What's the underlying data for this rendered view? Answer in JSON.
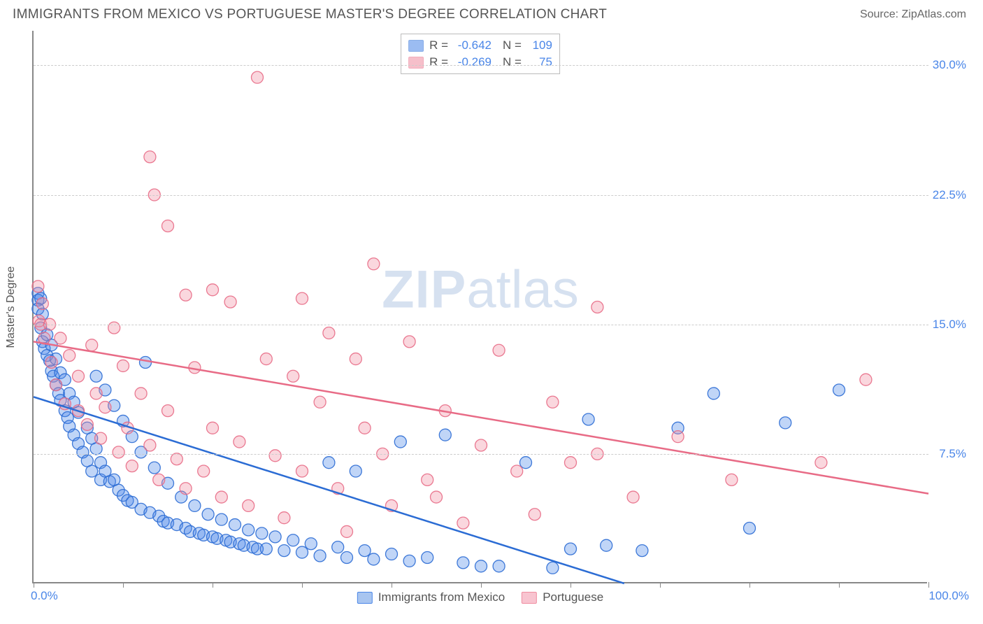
{
  "header": {
    "title": "IMMIGRANTS FROM MEXICO VS PORTUGUESE MASTER'S DEGREE CORRELATION CHART",
    "source": "Source: ZipAtlas.com"
  },
  "watermark_zip": "ZIP",
  "watermark_atlas": "atlas",
  "chart": {
    "type": "scatter",
    "xlim": [
      0,
      100
    ],
    "ylim": [
      0,
      32
    ],
    "xlabel_min": "0.0%",
    "xlabel_max": "100.0%",
    "ylabel": "Master's Degree",
    "yticks": [
      {
        "v": 7.5,
        "label": "7.5%"
      },
      {
        "v": 15.0,
        "label": "15.0%"
      },
      {
        "v": 22.5,
        "label": "22.5%"
      },
      {
        "v": 30.0,
        "label": "30.0%"
      }
    ],
    "xticks": [
      0,
      10,
      20,
      30,
      40,
      50,
      60,
      70,
      80,
      90,
      100
    ],
    "grid_color": "#cccccc",
    "axis_color": "#888888",
    "background_color": "#ffffff",
    "tick_label_color": "#4a86e8",
    "marker_radius": 8.5,
    "marker_fill_opacity": 0.35,
    "marker_stroke_opacity": 0.9,
    "line_width": 2.5,
    "series": [
      {
        "name": "Immigrants from Mexico",
        "color": "#4a86e8",
        "stroke": "#2b6cd4",
        "r": -0.642,
        "n": 109,
        "trend": {
          "x1": 0,
          "y1": 10.8,
          "x2": 66,
          "y2": 0
        },
        "points": [
          [
            0.5,
            16.8
          ],
          [
            0.5,
            16.4
          ],
          [
            0.5,
            15.9
          ],
          [
            0.8,
            16.5
          ],
          [
            0.8,
            14.8
          ],
          [
            1.0,
            15.6
          ],
          [
            1.0,
            14.0
          ],
          [
            1.2,
            13.6
          ],
          [
            1.5,
            14.4
          ],
          [
            1.5,
            13.2
          ],
          [
            1.8,
            12.9
          ],
          [
            2.0,
            13.8
          ],
          [
            2.0,
            12.3
          ],
          [
            2.2,
            12.0
          ],
          [
            2.5,
            13.0
          ],
          [
            2.5,
            11.5
          ],
          [
            2.8,
            11.0
          ],
          [
            3.0,
            12.2
          ],
          [
            3.0,
            10.6
          ],
          [
            3.5,
            11.8
          ],
          [
            3.5,
            10.0
          ],
          [
            3.8,
            9.6
          ],
          [
            4.0,
            11.0
          ],
          [
            4.0,
            9.1
          ],
          [
            4.5,
            10.5
          ],
          [
            4.5,
            8.6
          ],
          [
            5.0,
            9.9
          ],
          [
            5.0,
            8.1
          ],
          [
            5.5,
            7.6
          ],
          [
            6.0,
            9.0
          ],
          [
            6.0,
            7.1
          ],
          [
            6.5,
            8.4
          ],
          [
            6.5,
            6.5
          ],
          [
            7.0,
            12.0
          ],
          [
            7.0,
            7.8
          ],
          [
            7.5,
            7.0
          ],
          [
            7.5,
            6.0
          ],
          [
            8.0,
            11.2
          ],
          [
            8.0,
            6.5
          ],
          [
            8.5,
            5.9
          ],
          [
            9.0,
            10.3
          ],
          [
            9.0,
            6.0
          ],
          [
            9.5,
            5.4
          ],
          [
            10.0,
            9.4
          ],
          [
            10.0,
            5.1
          ],
          [
            10.5,
            4.8
          ],
          [
            11.0,
            8.5
          ],
          [
            11.0,
            4.7
          ],
          [
            12.0,
            7.6
          ],
          [
            12.0,
            4.3
          ],
          [
            12.5,
            12.8
          ],
          [
            13.0,
            4.1
          ],
          [
            13.5,
            6.7
          ],
          [
            14.0,
            3.9
          ],
          [
            14.5,
            3.6
          ],
          [
            15.0,
            5.8
          ],
          [
            15.0,
            3.5
          ],
          [
            16.0,
            3.4
          ],
          [
            16.5,
            5.0
          ],
          [
            17.0,
            3.2
          ],
          [
            17.5,
            3.0
          ],
          [
            18.0,
            4.5
          ],
          [
            18.5,
            2.9
          ],
          [
            19.0,
            2.8
          ],
          [
            19.5,
            4.0
          ],
          [
            20.0,
            2.7
          ],
          [
            20.5,
            2.6
          ],
          [
            21.0,
            3.7
          ],
          [
            21.5,
            2.5
          ],
          [
            22.0,
            2.4
          ],
          [
            22.5,
            3.4
          ],
          [
            23.0,
            2.3
          ],
          [
            23.5,
            2.2
          ],
          [
            24.0,
            3.1
          ],
          [
            24.5,
            2.1
          ],
          [
            25.0,
            2.0
          ],
          [
            25.5,
            2.9
          ],
          [
            26.0,
            2.0
          ],
          [
            27.0,
            2.7
          ],
          [
            28.0,
            1.9
          ],
          [
            29.0,
            2.5
          ],
          [
            30.0,
            1.8
          ],
          [
            31.0,
            2.3
          ],
          [
            32.0,
            1.6
          ],
          [
            33.0,
            7.0
          ],
          [
            34.0,
            2.1
          ],
          [
            35.0,
            1.5
          ],
          [
            36.0,
            6.5
          ],
          [
            37.0,
            1.9
          ],
          [
            38.0,
            1.4
          ],
          [
            40.0,
            1.7
          ],
          [
            41.0,
            8.2
          ],
          [
            42.0,
            1.3
          ],
          [
            44.0,
            1.5
          ],
          [
            46.0,
            8.6
          ],
          [
            48.0,
            1.2
          ],
          [
            50.0,
            1.0
          ],
          [
            52.0,
            1.0
          ],
          [
            55.0,
            7.0
          ],
          [
            58.0,
            0.9
          ],
          [
            60.0,
            2.0
          ],
          [
            62.0,
            9.5
          ],
          [
            64.0,
            2.2
          ],
          [
            68.0,
            1.9
          ],
          [
            72.0,
            9.0
          ],
          [
            76.0,
            11.0
          ],
          [
            80.0,
            3.2
          ],
          [
            84.0,
            9.3
          ],
          [
            90.0,
            11.2
          ]
        ]
      },
      {
        "name": "Portuguese",
        "color": "#f08ca0",
        "stroke": "#e86b86",
        "r": -0.269,
        "n": 75,
        "trend": {
          "x1": 0,
          "y1": 14.0,
          "x2": 100,
          "y2": 5.2
        },
        "points": [
          [
            0.5,
            17.2
          ],
          [
            0.6,
            15.2
          ],
          [
            0.8,
            15.0
          ],
          [
            1.0,
            16.2
          ],
          [
            1.2,
            14.2
          ],
          [
            1.8,
            15.0
          ],
          [
            2.0,
            12.8
          ],
          [
            2.5,
            11.5
          ],
          [
            3.0,
            14.2
          ],
          [
            3.5,
            10.4
          ],
          [
            4.0,
            13.2
          ],
          [
            5.0,
            12.0
          ],
          [
            5.0,
            10.0
          ],
          [
            6.0,
            9.2
          ],
          [
            6.5,
            13.8
          ],
          [
            7.0,
            11.0
          ],
          [
            7.5,
            8.4
          ],
          [
            8.0,
            10.2
          ],
          [
            9.0,
            14.8
          ],
          [
            9.5,
            7.6
          ],
          [
            10.0,
            12.6
          ],
          [
            10.5,
            9.0
          ],
          [
            11.0,
            6.8
          ],
          [
            12.0,
            11.0
          ],
          [
            13.0,
            8.0
          ],
          [
            13.0,
            24.7
          ],
          [
            13.5,
            22.5
          ],
          [
            14.0,
            6.0
          ],
          [
            15.0,
            20.7
          ],
          [
            15.0,
            10.0
          ],
          [
            16.0,
            7.2
          ],
          [
            17.0,
            16.7
          ],
          [
            17.0,
            5.5
          ],
          [
            18.0,
            12.5
          ],
          [
            19.0,
            6.5
          ],
          [
            20.0,
            17.0
          ],
          [
            20.0,
            9.0
          ],
          [
            21.0,
            5.0
          ],
          [
            22.0,
            16.3
          ],
          [
            23.0,
            8.2
          ],
          [
            24.0,
            4.5
          ],
          [
            25.0,
            29.3
          ],
          [
            26.0,
            13.0
          ],
          [
            27.0,
            7.4
          ],
          [
            28.0,
            3.8
          ],
          [
            29.0,
            12.0
          ],
          [
            30.0,
            16.5
          ],
          [
            30.0,
            6.5
          ],
          [
            32.0,
            10.5
          ],
          [
            33.0,
            14.5
          ],
          [
            34.0,
            5.5
          ],
          [
            35.0,
            3.0
          ],
          [
            36.0,
            13.0
          ],
          [
            37.0,
            9.0
          ],
          [
            38.0,
            18.5
          ],
          [
            39.0,
            7.5
          ],
          [
            40.0,
            4.5
          ],
          [
            42.0,
            14.0
          ],
          [
            44.0,
            6.0
          ],
          [
            45.0,
            5.0
          ],
          [
            46.0,
            10.0
          ],
          [
            48.0,
            3.5
          ],
          [
            50.0,
            8.0
          ],
          [
            52.0,
            13.5
          ],
          [
            54.0,
            6.5
          ],
          [
            56.0,
            4.0
          ],
          [
            58.0,
            10.5
          ],
          [
            60.0,
            7.0
          ],
          [
            63.0,
            7.5
          ],
          [
            63.0,
            16.0
          ],
          [
            67.0,
            5.0
          ],
          [
            72.0,
            8.5
          ],
          [
            78.0,
            6.0
          ],
          [
            88.0,
            7.0
          ],
          [
            93.0,
            11.8
          ]
        ]
      }
    ],
    "legend_top": {
      "r_label": "R =",
      "n_label": "N ="
    },
    "legend_bottom": [
      {
        "label": "Immigrants from Mexico",
        "color": "#a8c5f0",
        "stroke": "#4a86e8"
      },
      {
        "label": "Portuguese",
        "color": "#f8c4d0",
        "stroke": "#f08ca0"
      }
    ]
  }
}
